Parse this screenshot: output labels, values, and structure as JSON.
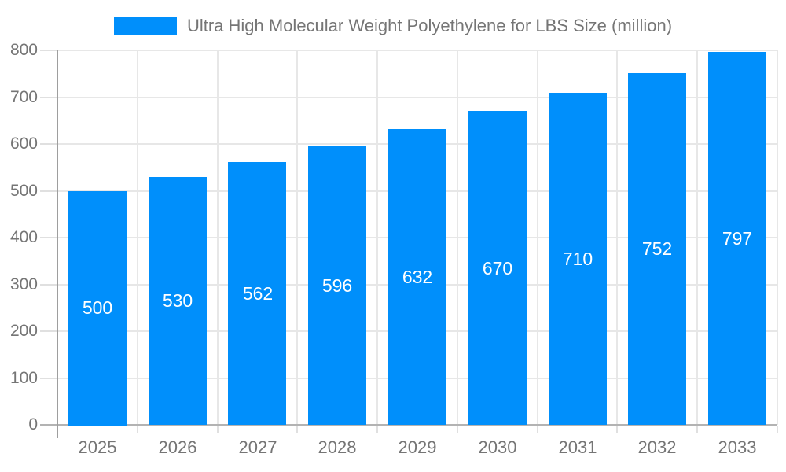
{
  "legend": {
    "label": "Ultra High Molecular Weight Polyethylene for LBS Size (million)"
  },
  "chart_data": {
    "type": "bar",
    "title": "Ultra High Molecular Weight Polyethylene for LBS Size (million)",
    "categories": [
      "2025",
      "2026",
      "2027",
      "2028",
      "2029",
      "2030",
      "2031",
      "2032",
      "2033"
    ],
    "values": [
      500,
      530,
      562,
      596,
      632,
      670,
      710,
      752,
      797
    ],
    "series": [
      {
        "name": "Ultra High Molecular Weight Polyethylene for LBS Size (million)",
        "values": [
          500,
          530,
          562,
          596,
          632,
          670,
          710,
          752,
          797
        ]
      }
    ],
    "xlabel": "",
    "ylabel": "",
    "ylim": [
      0,
      800
    ],
    "yticks": [
      0,
      100,
      200,
      300,
      400,
      500,
      600,
      700,
      800
    ],
    "grid": true,
    "vertical_grid": true,
    "legend_position": "top",
    "value_label_position": "inside-center",
    "colors": {
      "bar": "#008FFB",
      "value_label": "#ffffff",
      "axis_text": "#757575",
      "title_text": "#757575",
      "grid": "#e7e7e7",
      "tick": "#e0e0e0",
      "y_axis_line": "#9e9e9e",
      "x_axis_line": "#b3b3b3"
    }
  }
}
